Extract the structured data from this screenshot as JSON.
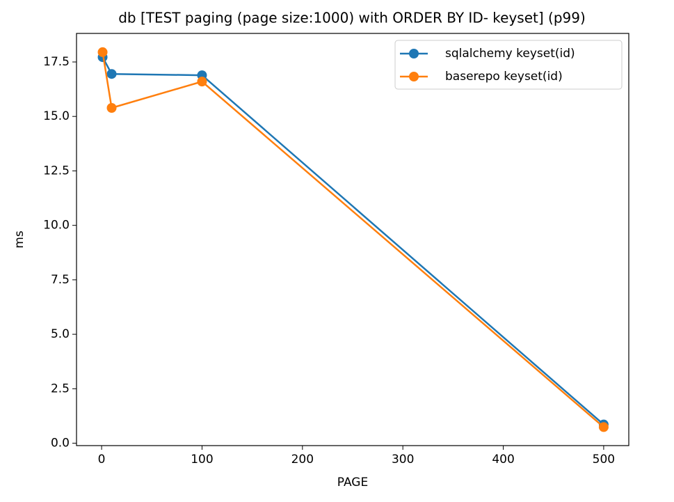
{
  "chart_data": {
    "type": "line",
    "title": "db [TEST paging (page size:1000) with ORDER BY ID- keyset] (p99)",
    "x_label": "PAGE",
    "y_label": "ms",
    "x": [
      1,
      10,
      100,
      500
    ],
    "series": [
      {
        "name": "sqlalchemy keyset(id)",
        "color": "#1f77b4",
        "values": [
          17.72,
          16.95,
          16.89,
          0.86
        ]
      },
      {
        "name": "baserepo keyset(id)",
        "color": "#ff7f0e",
        "values": [
          17.95,
          15.39,
          16.6,
          0.74
        ]
      }
    ],
    "xlim": [
      -25,
      525
    ],
    "xticks": [
      0,
      100,
      200,
      300,
      400,
      500
    ],
    "ylim": [
      -0.11,
      18.81
    ],
    "yticks": [
      {
        "value": 0,
        "label": "0.0"
      },
      2.5,
      {
        "value": 5,
        "label": "5.0"
      },
      7.5,
      {
        "value": 10,
        "label": "10.0"
      },
      12.5,
      {
        "value": 15,
        "label": "15.0"
      },
      17.5
    ],
    "legend": "upper right",
    "marker": "circle"
  }
}
